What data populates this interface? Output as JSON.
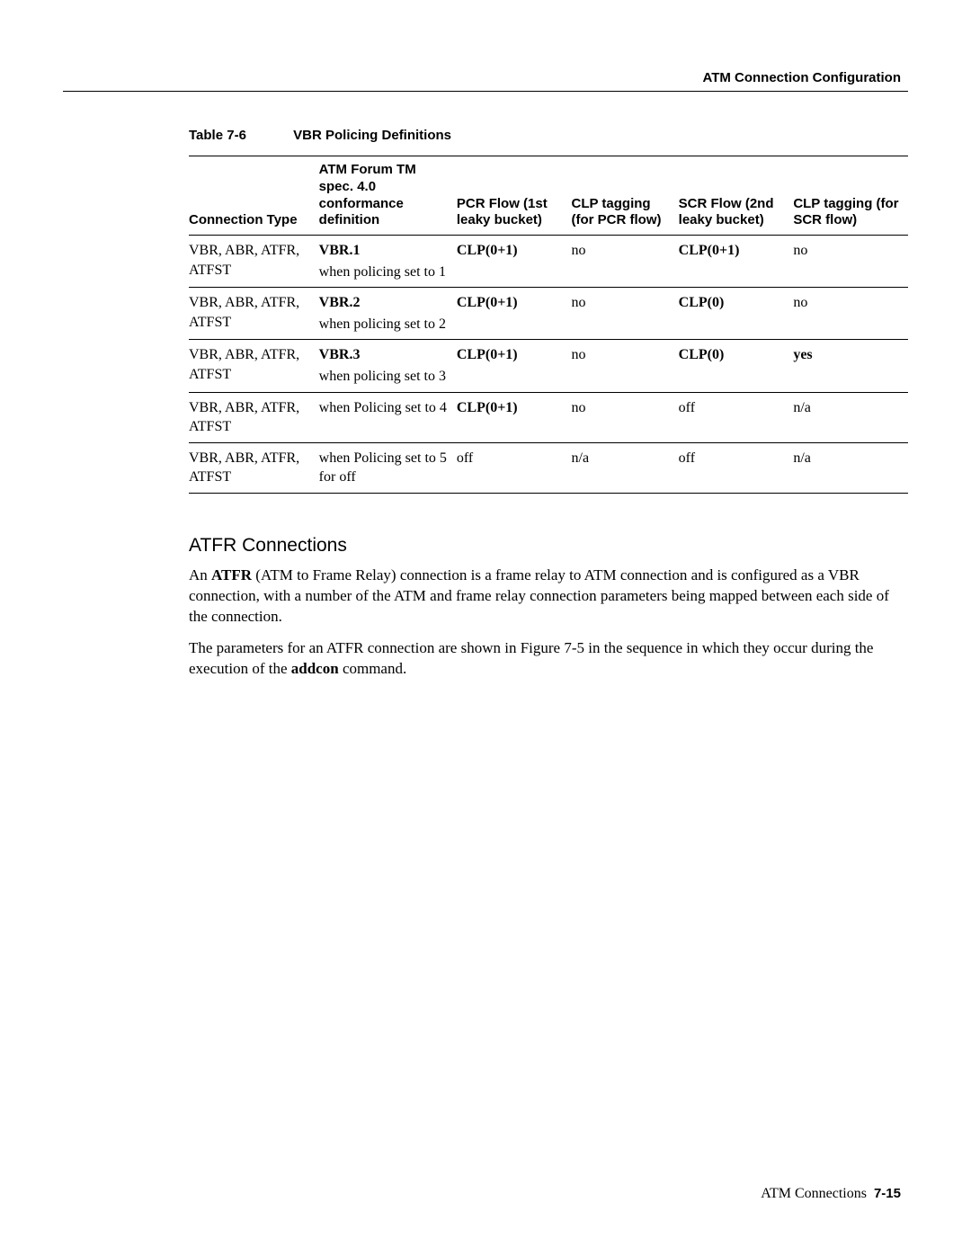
{
  "header": {
    "title": "ATM Connection Configuration"
  },
  "table": {
    "label": "Table 7-6",
    "title": "VBR Policing Definitions",
    "columns": [
      "Connection Type",
      "ATM Forum TM spec. 4.0 conformance definition",
      "PCR Flow (1st leaky bucket)",
      "CLP tagging (for PCR flow)",
      "SCR Flow (2nd leaky bucket)",
      "CLP tagging (for SCR flow)"
    ],
    "rows": [
      {
        "ct": "VBR, ABR, ATFR, ATFST",
        "def_primary": "VBR.1",
        "def_sub": "when policing set to 1",
        "pcr": "CLP(0+1)",
        "clp_pcr": "no",
        "scr": "CLP(0+1)",
        "clp_scr": "no",
        "bold_def": true,
        "bold_pcr": true,
        "bold_scr": true
      },
      {
        "ct": "VBR, ABR, ATFR, ATFST",
        "def_primary": "VBR.2",
        "def_sub": "when policing set to 2",
        "pcr": "CLP(0+1)",
        "clp_pcr": "no",
        "scr": "CLP(0)",
        "clp_scr": "no",
        "bold_def": true,
        "bold_pcr": true,
        "bold_scr": true
      },
      {
        "ct": "VBR, ABR, ATFR, ATFST",
        "def_primary": "VBR.3",
        "def_sub": "when policing set to 3",
        "pcr": "CLP(0+1)",
        "clp_pcr": "no",
        "scr": "CLP(0)",
        "clp_scr": "yes",
        "bold_def": true,
        "bold_pcr": true,
        "bold_scr": true,
        "bold_clp_scr": true
      },
      {
        "ct": "VBR, ABR, ATFR, ATFST",
        "def_primary": "when Policing set to 4",
        "def_sub": "",
        "pcr": "CLP(0+1)",
        "clp_pcr": "no",
        "scr": "off",
        "clp_scr": "n/a",
        "bold_def": false,
        "bold_pcr": true,
        "bold_scr": false
      },
      {
        "ct": "VBR, ABR, ATFR, ATFST",
        "def_primary": "when Policing set to 5 for off",
        "def_sub": "",
        "pcr": "off",
        "clp_pcr": "n/a",
        "scr": "off",
        "clp_scr": "n/a",
        "bold_def": false,
        "bold_pcr": false,
        "bold_scr": false
      }
    ]
  },
  "section": {
    "heading": "ATFR Connections",
    "para1_prefix": "An ",
    "para1_bold": "ATFR",
    "para1_rest": " (ATM to Frame Relay) connection is a frame relay to ATM connection and is configured as a VBR connection, with a number of the ATM and frame relay connection parameters being mapped between each side of the connection.",
    "para2_prefix": "The parameters for an ATFR connection are shown in Figure 7-5 in the sequence in which they occur during the execution of the ",
    "para2_bold": "addcon",
    "para2_rest": " command."
  },
  "footer": {
    "chapter": "ATM Connections",
    "page": "7-15"
  }
}
